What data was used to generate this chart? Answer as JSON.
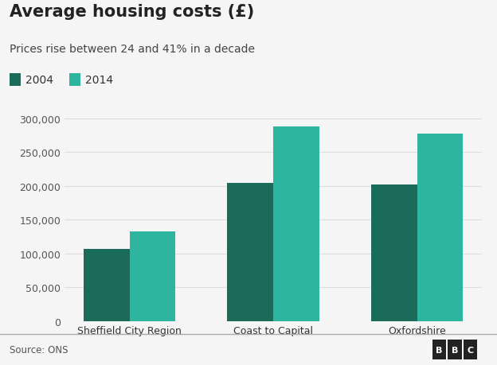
{
  "title": "Average housing costs (£)",
  "subtitle": "Prices rise between 24 and 41% in a decade",
  "categories": [
    "Sheffield City Region",
    "Coast to Capital",
    "Oxfordshire"
  ],
  "values_2004": [
    107000,
    205000,
    202000
  ],
  "values_2014": [
    133000,
    288000,
    278000
  ],
  "color_2004": "#1a6b5a",
  "color_2014": "#2db5a0",
  "ylim": [
    0,
    325000
  ],
  "yticks": [
    0,
    50000,
    100000,
    150000,
    200000,
    250000,
    300000
  ],
  "ytick_labels": [
    "0",
    "50,000",
    "100,000",
    "150,000",
    "200,000",
    "250,000",
    "300,000"
  ],
  "legend_labels": [
    "2004",
    "2014"
  ],
  "source_text": "Source: ONS",
  "bbc_letters": [
    "B",
    "B",
    "C"
  ],
  "background_color": "#f5f5f5",
  "bar_width": 0.32,
  "title_fontsize": 15,
  "subtitle_fontsize": 10,
  "legend_fontsize": 10,
  "axis_fontsize": 9
}
